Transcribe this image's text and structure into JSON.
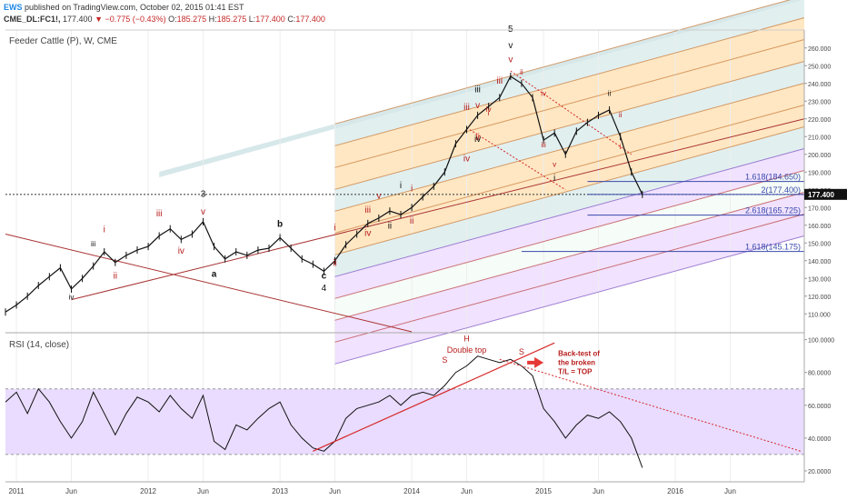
{
  "header": {
    "publisher_badge": "EWS",
    "published_text": "published on TradingView.com, October 02, 2015 01:41 EST",
    "symbol": "CME_DL:FC1!,",
    "last": "177.400",
    "change": "−0.775 (−0.43%)",
    "ohlc": {
      "o_label": "O:",
      "o": "185.275",
      "h_label": "H:",
      "h": "185.275",
      "l_label": "L:",
      "l": "177.400",
      "c_label": "C:",
      "c": "177.400"
    }
  },
  "colors": {
    "price": "#111111",
    "red_label": "#b71c1c",
    "rsi_line": "#111111",
    "rsi_band": "#e9dcff",
    "pitchfork_orange": "#ffe3b8",
    "pitchfork_teal": "#dcecec",
    "pitchfork_purple": "#dcb8ff",
    "trendline_red": "#d62728",
    "fib_blue": "#3949ab",
    "price_tag_bg": "#111111"
  },
  "chart_data": [
    {
      "type": "line",
      "title": "Feeder Cattle (P), W, CME",
      "xlabel": "",
      "ylabel": "",
      "x_ticks": [
        "2011",
        "Jun",
        "2012",
        "Jun",
        "2013",
        "Jun",
        "2014",
        "Jun",
        "2015",
        "Jun",
        "2016",
        "Jun"
      ],
      "y_ticks": [
        "110.000",
        "120.000",
        "130.000",
        "140.000",
        "150.000",
        "160.000",
        "170.000",
        "180.000",
        "190.000",
        "200.000",
        "210.000",
        "220.000",
        "230.000",
        "240.000",
        "250.000",
        "260.000"
      ],
      "ylim": [
        105,
        265
      ],
      "grid": true,
      "last_price_tag": "177.400",
      "series": [
        {
          "values": [
            [
              "2010-12",
              111
            ],
            [
              "2011-01",
              115
            ],
            [
              "2011-02",
              120
            ],
            [
              "2011-03",
              126
            ],
            [
              "2011-04",
              131
            ],
            [
              "2011-05",
              136
            ],
            [
              "2011-06",
              124
            ],
            [
              "2011-07",
              130
            ],
            [
              "2011-08",
              137
            ],
            [
              "2011-09",
              145
            ],
            [
              "2011-10",
              139
            ],
            [
              "2011-11",
              143
            ],
            [
              "2011-12",
              146
            ],
            [
              "2012-01",
              148
            ],
            [
              "2012-02",
              154
            ],
            [
              "2012-03",
              158
            ],
            [
              "2012-04",
              152
            ],
            [
              "2012-05",
              155
            ],
            [
              "2012-06",
              162
            ],
            [
              "2012-07",
              148
            ],
            [
              "2012-08",
              141
            ],
            [
              "2012-09",
              145
            ],
            [
              "2012-10",
              143
            ],
            [
              "2012-11",
              146
            ],
            [
              "2012-12",
              147
            ],
            [
              "2013-01",
              153
            ],
            [
              "2013-02",
              147
            ],
            [
              "2013-03",
              141
            ],
            [
              "2013-04",
              138
            ],
            [
              "2013-05",
              134
            ],
            [
              "2013-06",
              140
            ],
            [
              "2013-07",
              149
            ],
            [
              "2013-08",
              155
            ],
            [
              "2013-09",
              161
            ],
            [
              "2013-10",
              164
            ],
            [
              "2013-11",
              168
            ],
            [
              "2013-12",
              166
            ],
            [
              "2014-01",
              170
            ],
            [
              "2014-02",
              176
            ],
            [
              "2014-03",
              182
            ],
            [
              "2014-04",
              190
            ],
            [
              "2014-05",
              206
            ],
            [
              "2014-06",
              214
            ],
            [
              "2014-07",
              222
            ],
            [
              "2014-08",
              227
            ],
            [
              "2014-09",
              232
            ],
            [
              "2014-10",
              244
            ],
            [
              "2014-11",
              240
            ],
            [
              "2014-12",
              232
            ],
            [
              "2015-01",
              208
            ],
            [
              "2015-02",
              212
            ],
            [
              "2015-03",
              200
            ],
            [
              "2015-04",
              213
            ],
            [
              "2015-05",
              218
            ],
            [
              "2015-06",
              222
            ],
            [
              "2015-07",
              225
            ],
            [
              "2015-08",
              210
            ],
            [
              "2015-09",
              190
            ],
            [
              "2015-10",
              177.4
            ]
          ]
        }
      ],
      "fib_levels": [
        {
          "label": "1.618(184.650)",
          "value": 184.65
        },
        {
          "label": "2(177.400)",
          "value": 177.4
        },
        {
          "label": "2.618(165.725)",
          "value": 165.725
        },
        {
          "label": "1.618(145.175)",
          "value": 145.175
        }
      ],
      "annotations": [
        {
          "text": "iii",
          "date": "2011-08",
          "y": 148,
          "color": "black",
          "size": "small"
        },
        {
          "text": "iv",
          "date": "2011-06",
          "y": 118,
          "color": "black",
          "size": "small"
        },
        {
          "text": "i",
          "date": "2011-09",
          "y": 156,
          "color": "red"
        },
        {
          "text": "ii",
          "date": "2011-10",
          "y": 130,
          "color": "red"
        },
        {
          "text": "iii",
          "date": "2012-02",
          "y": 165,
          "color": "red"
        },
        {
          "text": "iv",
          "date": "2012-04",
          "y": 144,
          "color": "red"
        },
        {
          "text": "3",
          "date": "2012-06",
          "y": 176,
          "color": "black"
        },
        {
          "text": "v",
          "date": "2012-06",
          "y": 166,
          "color": "red"
        },
        {
          "text": "a",
          "date": "2012-07",
          "y": 131,
          "color": "black",
          "bold": true
        },
        {
          "text": "b",
          "date": "2013-01",
          "y": 159,
          "color": "black",
          "bold": true
        },
        {
          "text": "c",
          "date": "2013-05",
          "y": 130,
          "color": "black",
          "bold": true
        },
        {
          "text": "4",
          "date": "2013-05",
          "y": 123,
          "color": "black"
        },
        {
          "text": "i",
          "date": "2013-06",
          "y": 157,
          "color": "red"
        },
        {
          "text": "ii",
          "date": "2013-06",
          "y": 137,
          "color": "red"
        },
        {
          "text": "iii",
          "date": "2013-09",
          "y": 167,
          "color": "red"
        },
        {
          "text": "iv",
          "date": "2013-09",
          "y": 154,
          "color": "red"
        },
        {
          "text": "v",
          "date": "2013-10",
          "y": 175,
          "color": "red"
        },
        {
          "text": "ii",
          "date": "2013-11",
          "y": 158,
          "color": "black"
        },
        {
          "text": "i",
          "date": "2013-12",
          "y": 181,
          "color": "black"
        },
        {
          "text": "i",
          "date": "2014-01",
          "y": 179,
          "color": "red"
        },
        {
          "text": "ii",
          "date": "2014-01",
          "y": 161,
          "color": "red"
        },
        {
          "text": "iii",
          "date": "2014-06",
          "y": 225,
          "color": "red"
        },
        {
          "text": "v",
          "date": "2014-07",
          "y": 226,
          "color": "red"
        },
        {
          "text": "iv",
          "date": "2014-06",
          "y": 196,
          "color": "red"
        },
        {
          "text": "ii",
          "date": "2014-07",
          "y": 208,
          "color": "red"
        },
        {
          "text": "iii",
          "date": "2014-07",
          "y": 235,
          "color": "black"
        },
        {
          "text": "iv",
          "date": "2014-07",
          "y": 207,
          "color": "black"
        },
        {
          "text": "i",
          "date": "2014-08",
          "y": 222,
          "color": "red",
          "size": "small"
        },
        {
          "text": "iv",
          "date": "2014-08",
          "y": 224,
          "color": "red",
          "size": "small"
        },
        {
          "text": "iii",
          "date": "2014-09",
          "y": 240,
          "color": "red"
        },
        {
          "text": "5",
          "date": "2014-10",
          "y": 269,
          "color": "black"
        },
        {
          "text": "v",
          "date": "2014-10",
          "y": 260,
          "color": "black"
        },
        {
          "text": "v",
          "date": "2014-10",
          "y": 252,
          "color": "red"
        },
        {
          "text": "ii",
          "date": "2014-11",
          "y": 245,
          "color": "red",
          "size": "small"
        },
        {
          "text": "iv",
          "date": "2015-01",
          "y": 233,
          "color": "red",
          "size": "small"
        },
        {
          "text": "iii",
          "date": "2015-01",
          "y": 204,
          "color": "red",
          "size": "small"
        },
        {
          "text": "v",
          "date": "2015-02",
          "y": 193,
          "color": "red",
          "size": "small"
        },
        {
          "text": "i",
          "date": "2015-02",
          "y": 185,
          "color": "black"
        },
        {
          "text": "ii",
          "date": "2015-07",
          "y": 233,
          "color": "black",
          "size": "small"
        },
        {
          "text": "ii",
          "date": "2015-08",
          "y": 221,
          "color": "red",
          "size": "small"
        },
        {
          "text": "i",
          "date": "2015-08",
          "y": 203,
          "color": "red",
          "size": "small"
        }
      ]
    },
    {
      "type": "line",
      "title": "RSI (14, close)",
      "y_ticks": [
        "20.0000",
        "40.0000",
        "60.0000",
        "80.0000",
        "100.0000"
      ],
      "ylim": [
        15,
        102
      ],
      "band": [
        30,
        70
      ],
      "series": [
        {
          "values": [
            [
              "2010-12",
              62
            ],
            [
              "2011-01",
              68
            ],
            [
              "2011-02",
              55
            ],
            [
              "2011-03",
              70
            ],
            [
              "2011-04",
              62
            ],
            [
              "2011-05",
              50
            ],
            [
              "2011-06",
              40
            ],
            [
              "2011-07",
              50
            ],
            [
              "2011-08",
              68
            ],
            [
              "2011-09",
              55
            ],
            [
              "2011-10",
              42
            ],
            [
              "2011-11",
              55
            ],
            [
              "2011-12",
              65
            ],
            [
              "2012-01",
              62
            ],
            [
              "2012-02",
              56
            ],
            [
              "2012-03",
              66
            ],
            [
              "2012-04",
              58
            ],
            [
              "2012-05",
              52
            ],
            [
              "2012-06",
              66
            ],
            [
              "2012-07",
              38
            ],
            [
              "2012-08",
              33
            ],
            [
              "2012-09",
              48
            ],
            [
              "2012-10",
              45
            ],
            [
              "2012-11",
              52
            ],
            [
              "2012-12",
              58
            ],
            [
              "2013-01",
              62
            ],
            [
              "2013-02",
              48
            ],
            [
              "2013-03",
              40
            ],
            [
              "2013-04",
              34
            ],
            [
              "2013-05",
              32
            ],
            [
              "2013-06",
              38
            ],
            [
              "2013-07",
              52
            ],
            [
              "2013-08",
              58
            ],
            [
              "2013-09",
              60
            ],
            [
              "2013-10",
              62
            ],
            [
              "2013-11",
              66
            ],
            [
              "2013-12",
              60
            ],
            [
              "2014-01",
              66
            ],
            [
              "2014-02",
              68
            ],
            [
              "2014-03",
              66
            ],
            [
              "2014-04",
              72
            ],
            [
              "2014-05",
              80
            ],
            [
              "2014-06",
              84
            ],
            [
              "2014-07",
              90
            ],
            [
              "2014-08",
              88
            ],
            [
              "2014-09",
              86
            ],
            [
              "2014-10",
              88
            ],
            [
              "2014-11",
              84
            ],
            [
              "2014-12",
              78
            ],
            [
              "2015-01",
              58
            ],
            [
              "2015-02",
              50
            ],
            [
              "2015-03",
              40
            ],
            [
              "2015-04",
              48
            ],
            [
              "2015-05",
              54
            ],
            [
              "2015-06",
              52
            ],
            [
              "2015-07",
              56
            ],
            [
              "2015-08",
              50
            ],
            [
              "2015-09",
              40
            ],
            [
              "2015-10",
              22
            ]
          ]
        }
      ],
      "annotations": [
        {
          "text": "H",
          "color": "red"
        },
        {
          "text": "Double top",
          "color": "red"
        },
        {
          "text": "S",
          "color": "red"
        },
        {
          "text": "S",
          "color": "red"
        },
        {
          "text": "Back-test of the broken T/L = TOP",
          "lines": [
            "Back-test of",
            "the broken",
            "T/L = TOP"
          ],
          "color": "red"
        }
      ]
    }
  ]
}
